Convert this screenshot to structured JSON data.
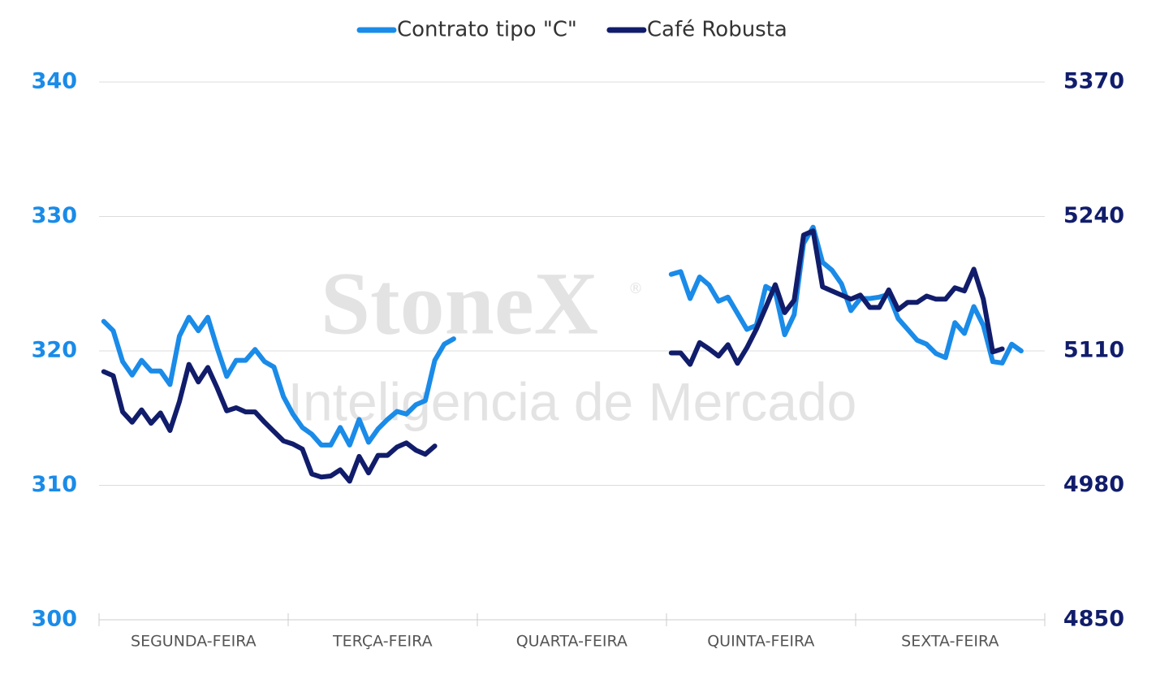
{
  "chart_data": {
    "type": "line",
    "watermark": {
      "title": "StoneX",
      "mark": "®",
      "subtitle": "Inteligencia de Mercado"
    },
    "x": [
      null,
      null,
      null,
      null,
      null,
      null,
      null,
      null,
      null,
      null,
      "SEGUNDA-FEIRA",
      null,
      null,
      null,
      null,
      null,
      null,
      null,
      null,
      null,
      null,
      null,
      null,
      null,
      null,
      null,
      null,
      null,
      null,
      null,
      "TERÇA-FEIRA",
      null,
      null,
      null,
      null,
      null,
      null,
      null,
      null,
      null,
      null,
      null,
      null,
      null,
      null,
      null,
      null,
      null,
      null,
      null,
      "QUARTA-FEIRA",
      null,
      null,
      null,
      null,
      null,
      null,
      null,
      null,
      null,
      null,
      null,
      null,
      null,
      null,
      null,
      null,
      null,
      null,
      null,
      "QUINTA-FEIRA",
      null,
      null,
      null,
      null,
      null,
      null,
      null,
      null,
      null,
      null,
      null,
      null,
      null,
      null,
      null,
      null,
      null,
      null,
      null,
      "SEXTA-FEIRA",
      null,
      null,
      null,
      null,
      null,
      null,
      null,
      null,
      null
    ],
    "ylim": [
      300,
      340
    ],
    "yticks": [
      300,
      310,
      320,
      330,
      340
    ],
    "y2lim": [
      4850,
      5370
    ],
    "y2ticks": [
      4850,
      4980,
      5110,
      5240,
      5370
    ],
    "grid": true,
    "legend": "top",
    "series": [
      {
        "name": "Contrato tipo \"C\"",
        "color": "#1a8be8",
        "values": [
          322.2,
          321.5,
          319.2,
          318.2,
          319.3,
          318.5,
          318.5,
          317.5,
          321.1,
          322.5,
          321.5,
          322.5,
          320.2,
          318.1,
          319.3,
          319.3,
          320.1,
          319.2,
          318.8,
          316.6,
          315.3,
          314.3,
          313.8,
          313.0,
          313.0,
          314.3,
          313.0,
          314.9,
          313.2,
          314.2,
          314.9,
          315.5,
          315.3,
          316.0,
          316.3,
          319.3,
          320.5,
          320.9,
          null,
          null,
          null,
          null,
          null,
          null,
          null,
          null,
          null,
          null,
          null,
          null,
          null,
          null,
          null,
          null,
          null,
          null,
          null,
          null,
          null,
          null,
          325.7,
          325.9,
          323.9,
          325.5,
          324.9,
          323.7,
          324.0,
          322.8,
          321.6,
          321.9,
          324.8,
          324.4,
          321.2,
          322.7,
          328.0,
          329.2,
          326.6,
          326.0,
          325.0,
          323.0,
          323.9,
          323.9,
          324.0,
          324.2,
          322.4,
          321.6,
          320.8,
          320.5,
          319.8,
          319.5,
          322.1,
          321.3,
          323.3,
          321.9,
          319.2,
          319.1,
          320.5,
          320.0,
          null,
          null
        ]
      },
      {
        "name": "Café Robusta",
        "color": "#111d6b",
        "axis": "y2",
        "values": [
          5090,
          5086,
          5051,
          5041,
          5053,
          5040,
          5050,
          5033,
          5061,
          5097,
          5080,
          5094,
          5074,
          5052,
          5055,
          5051,
          5051,
          5041,
          5032,
          5023,
          5020,
          5015,
          4991,
          4988,
          4989,
          4995,
          4984,
          5008,
          4992,
          5009,
          5009,
          5017,
          5021,
          5014,
          5010,
          5018,
          null,
          null,
          null,
          null,
          null,
          null,
          null,
          null,
          null,
          null,
          null,
          null,
          null,
          null,
          null,
          null,
          null,
          null,
          null,
          null,
          null,
          null,
          null,
          null,
          5108,
          5108,
          5097,
          5118,
          5112,
          5105,
          5116,
          5098,
          5113,
          5131,
          5152,
          5174,
          5147,
          5159,
          5222,
          5226,
          5172,
          5168,
          5164,
          5160,
          5164,
          5152,
          5152,
          5169,
          5150,
          5157,
          5157,
          5163,
          5160,
          5160,
          5171,
          5168,
          5189,
          5160,
          5109,
          5112,
          null,
          null,
          null,
          null
        ]
      }
    ]
  }
}
